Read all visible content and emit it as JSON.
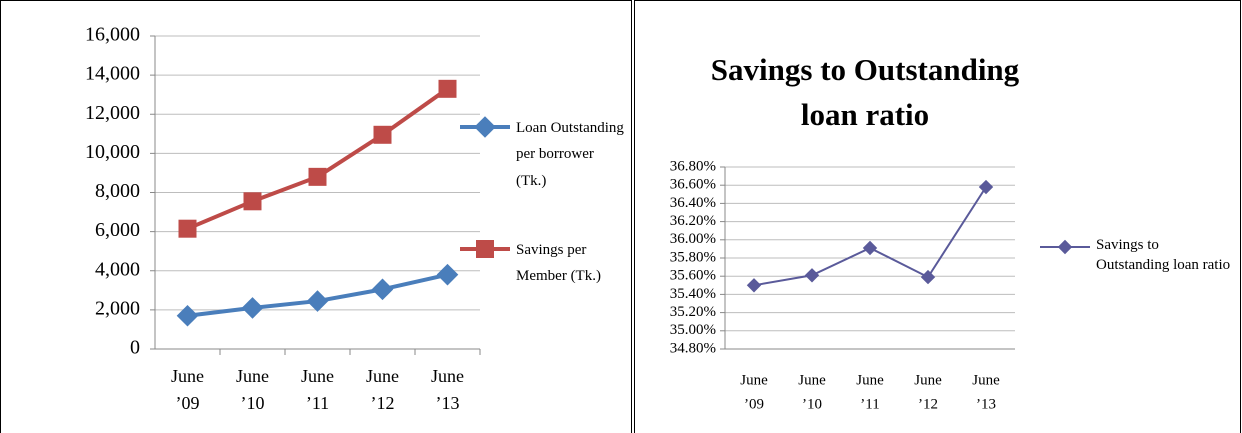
{
  "chart_data": [
    {
      "type": "line",
      "categories": [
        [
          "June",
          "’09"
        ],
        [
          "June",
          "’10"
        ],
        [
          "June",
          "’11"
        ],
        [
          "June",
          "’12"
        ],
        [
          "June",
          "’13"
        ]
      ],
      "series": [
        {
          "name": "Loan Outstanding per borrower (Tk.)",
          "color": "#4a7ebb",
          "marker": "diamond",
          "values": [
            1700,
            2100,
            2450,
            3050,
            3800
          ]
        },
        {
          "name": "Savings per Member (Tk.)",
          "color": "#be4b48",
          "marker": "square",
          "values": [
            6150,
            7550,
            8800,
            10950,
            13300
          ]
        }
      ],
      "ylim": [
        0,
        16000
      ],
      "yticks": [
        0,
        {
          "value": 2000,
          "label": "2,000"
        },
        {
          "value": 4000,
          "label": "4,000"
        },
        {
          "value": 6000,
          "label": "6,000"
        },
        {
          "value": 8000,
          "label": "8,000"
        },
        {
          "value": 10000,
          "label": "10,000"
        },
        {
          "value": 12000,
          "label": "12,000"
        },
        {
          "value": 14000,
          "label": "14,000"
        },
        {
          "value": 16000,
          "label": "16,000"
        }
      ],
      "grid": true,
      "legend": "right"
    },
    {
      "type": "line",
      "title": "Savings to Outstanding loan ratio",
      "categories": [
        [
          "June",
          "’09"
        ],
        [
          "June",
          "’10"
        ],
        [
          "June",
          "’11"
        ],
        [
          "June",
          "’12"
        ],
        [
          "June",
          "’13"
        ]
      ],
      "series": [
        {
          "name": "Savings to Outstanding loan ratio",
          "color": "#5a5a9a",
          "marker": "diamond",
          "values": [
            35.5,
            35.61,
            35.91,
            35.59,
            36.58
          ]
        }
      ],
      "ylim": [
        34.8,
        36.8
      ],
      "yticks": [
        {
          "value": 34.8,
          "label": "34.80%"
        },
        {
          "value": 35.0,
          "label": "35.00%"
        },
        {
          "value": 35.2,
          "label": "35.20%"
        },
        {
          "value": 35.4,
          "label": "35.40%"
        },
        {
          "value": 35.6,
          "label": "35.60%"
        },
        {
          "value": 35.8,
          "label": "35.80%"
        },
        {
          "value": 36.0,
          "label": "36.00%"
        },
        {
          "value": 36.2,
          "label": "36.20%"
        },
        {
          "value": 36.4,
          "label": "36.40%"
        },
        {
          "value": 36.6,
          "label": "36.60%"
        },
        {
          "value": 36.8,
          "label": "36.80%"
        }
      ],
      "grid": true,
      "legend": "right"
    }
  ]
}
